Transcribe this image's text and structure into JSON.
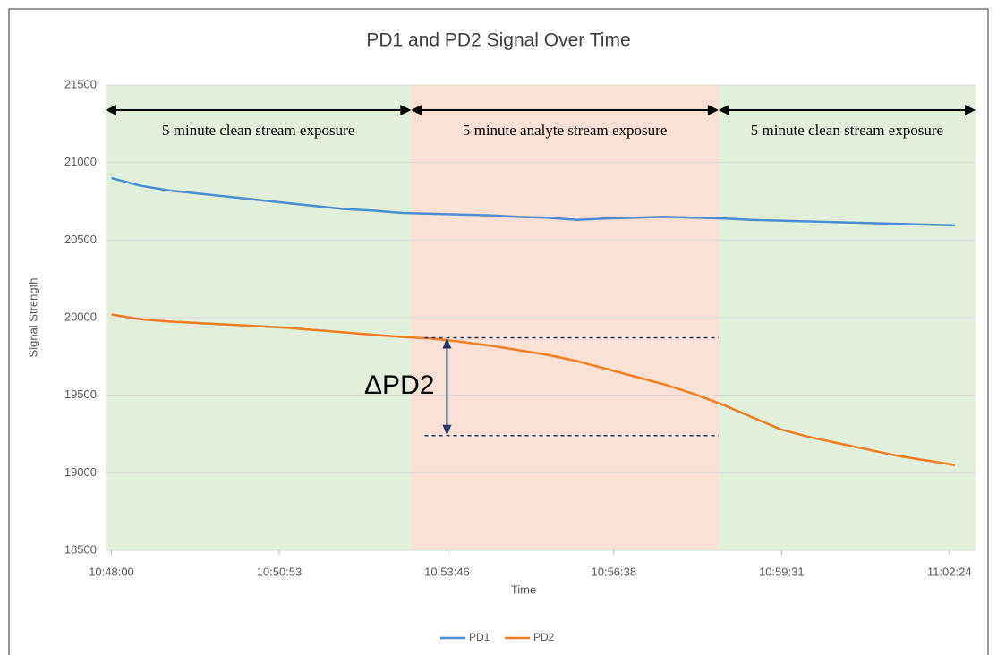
{
  "chart_data": {
    "type": "line",
    "title": "PD1 and PD2 Signal Over Time",
    "x_label": "Time",
    "y_label": "Signal Strength",
    "x": [
      "10:48:00",
      "10:48:30",
      "10:49:00",
      "10:49:30",
      "10:50:00",
      "10:50:30",
      "10:51:00",
      "10:51:30",
      "10:52:00",
      "10:52:30",
      "10:53:00",
      "10:53:30",
      "10:54:00",
      "10:54:30",
      "10:55:00",
      "10:55:30",
      "10:56:00",
      "10:56:30",
      "10:57:00",
      "10:57:30",
      "10:58:00",
      "10:58:30",
      "10:59:00",
      "10:59:30",
      "11:00:00",
      "11:00:30",
      "11:01:00",
      "11:01:30",
      "11:02:00",
      "11:02:30"
    ],
    "series": [
      {
        "name": "PD1",
        "color": "#4a8fd4",
        "values": [
          20900,
          20850,
          20820,
          20800,
          20780,
          20760,
          20740,
          20720,
          20700,
          20690,
          20675,
          20670,
          20665,
          20660,
          20650,
          20645,
          20630,
          20640,
          20645,
          20650,
          20645,
          20640,
          20630,
          20625,
          20620,
          20615,
          20610,
          20605,
          20600,
          20595
        ]
      },
      {
        "name": "PD2",
        "color": "#ef7d22",
        "values": [
          20020,
          19990,
          19975,
          19965,
          19955,
          19945,
          19935,
          19920,
          19905,
          19890,
          19875,
          19865,
          19845,
          19820,
          19790,
          19760,
          19720,
          19670,
          19620,
          19570,
          19510,
          19440,
          19360,
          19280,
          19230,
          19190,
          19150,
          19110,
          19080,
          19050
        ]
      }
    ],
    "xlim": [
      "10:47:54",
      "11:02:51"
    ],
    "xticks": [
      "10:48:00",
      "10:50:53",
      "10:53:46",
      "10:56:38",
      "10:59:31",
      "11:02:24"
    ],
    "ylim": [
      18500,
      21500
    ],
    "yticks": [
      18500,
      19000,
      19500,
      20000,
      20500,
      21000,
      21500
    ],
    "grid": true,
    "legend": "bottom",
    "regions": [
      {
        "from": "10:47:54",
        "to": "10:53:09",
        "color": "#e2efda",
        "label": "5 minute clean stream exposure"
      },
      {
        "from": "10:53:09",
        "to": "10:58:26",
        "color": "#fbe1d3",
        "label": "5 minute analyte stream exposure"
      },
      {
        "from": "10:58:26",
        "to": "11:02:51",
        "color": "#e2efda",
        "label": "5 minute clean stream exposure"
      }
    ],
    "delta_annotation": {
      "label": "ΔPD2",
      "x": "10:53:46",
      "x_end": "10:58:26",
      "from": 19870,
      "to": 19240
    }
  }
}
